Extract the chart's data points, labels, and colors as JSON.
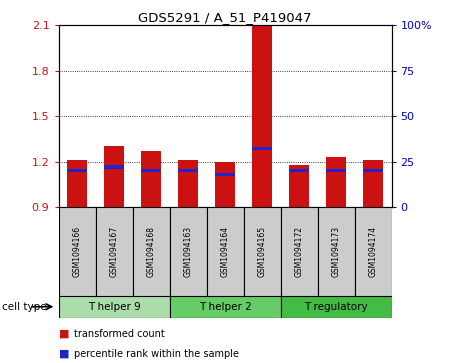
{
  "title": "GDS5291 / A_51_P419047",
  "samples": [
    "GSM1094166",
    "GSM1094167",
    "GSM1094168",
    "GSM1094163",
    "GSM1094164",
    "GSM1094165",
    "GSM1094172",
    "GSM1094173",
    "GSM1094174"
  ],
  "transformed_counts": [
    1.21,
    1.3,
    1.27,
    1.21,
    1.2,
    2.1,
    1.18,
    1.23,
    1.21
  ],
  "percentile_ranks": [
    20,
    22,
    20,
    20,
    18,
    32,
    20,
    20,
    20
  ],
  "baseline": 0.9,
  "ylim_left": [
    0.9,
    2.1
  ],
  "ylim_right": [
    0,
    100
  ],
  "yticks_left": [
    0.9,
    1.2,
    1.5,
    1.8,
    2.1
  ],
  "yticks_right": [
    0,
    25,
    50,
    75,
    100
  ],
  "yticklabels_right": [
    "0",
    "25",
    "50",
    "75",
    "100%"
  ],
  "gridlines": [
    1.2,
    1.5,
    1.8
  ],
  "cell_types": [
    {
      "label": "T helper 9",
      "indices": [
        0,
        1,
        2
      ],
      "color": "#aaddaa"
    },
    {
      "label": "T helper 2",
      "indices": [
        3,
        4,
        5
      ],
      "color": "#66cc66"
    },
    {
      "label": "T regulatory",
      "indices": [
        6,
        7,
        8
      ],
      "color": "#44bb44"
    }
  ],
  "bar_color_red": "#cc1111",
  "bar_color_blue": "#2222cc",
  "bar_width": 0.55,
  "left_axis_color": "#cc1111",
  "right_axis_color": "#0000cc",
  "legend_labels": [
    "transformed count",
    "percentile rank within the sample"
  ],
  "legend_colors": [
    "#cc1111",
    "#2222cc"
  ],
  "cell_type_label": "cell type",
  "sample_bg_color": "#cccccc",
  "plot_bg": "#ffffff"
}
